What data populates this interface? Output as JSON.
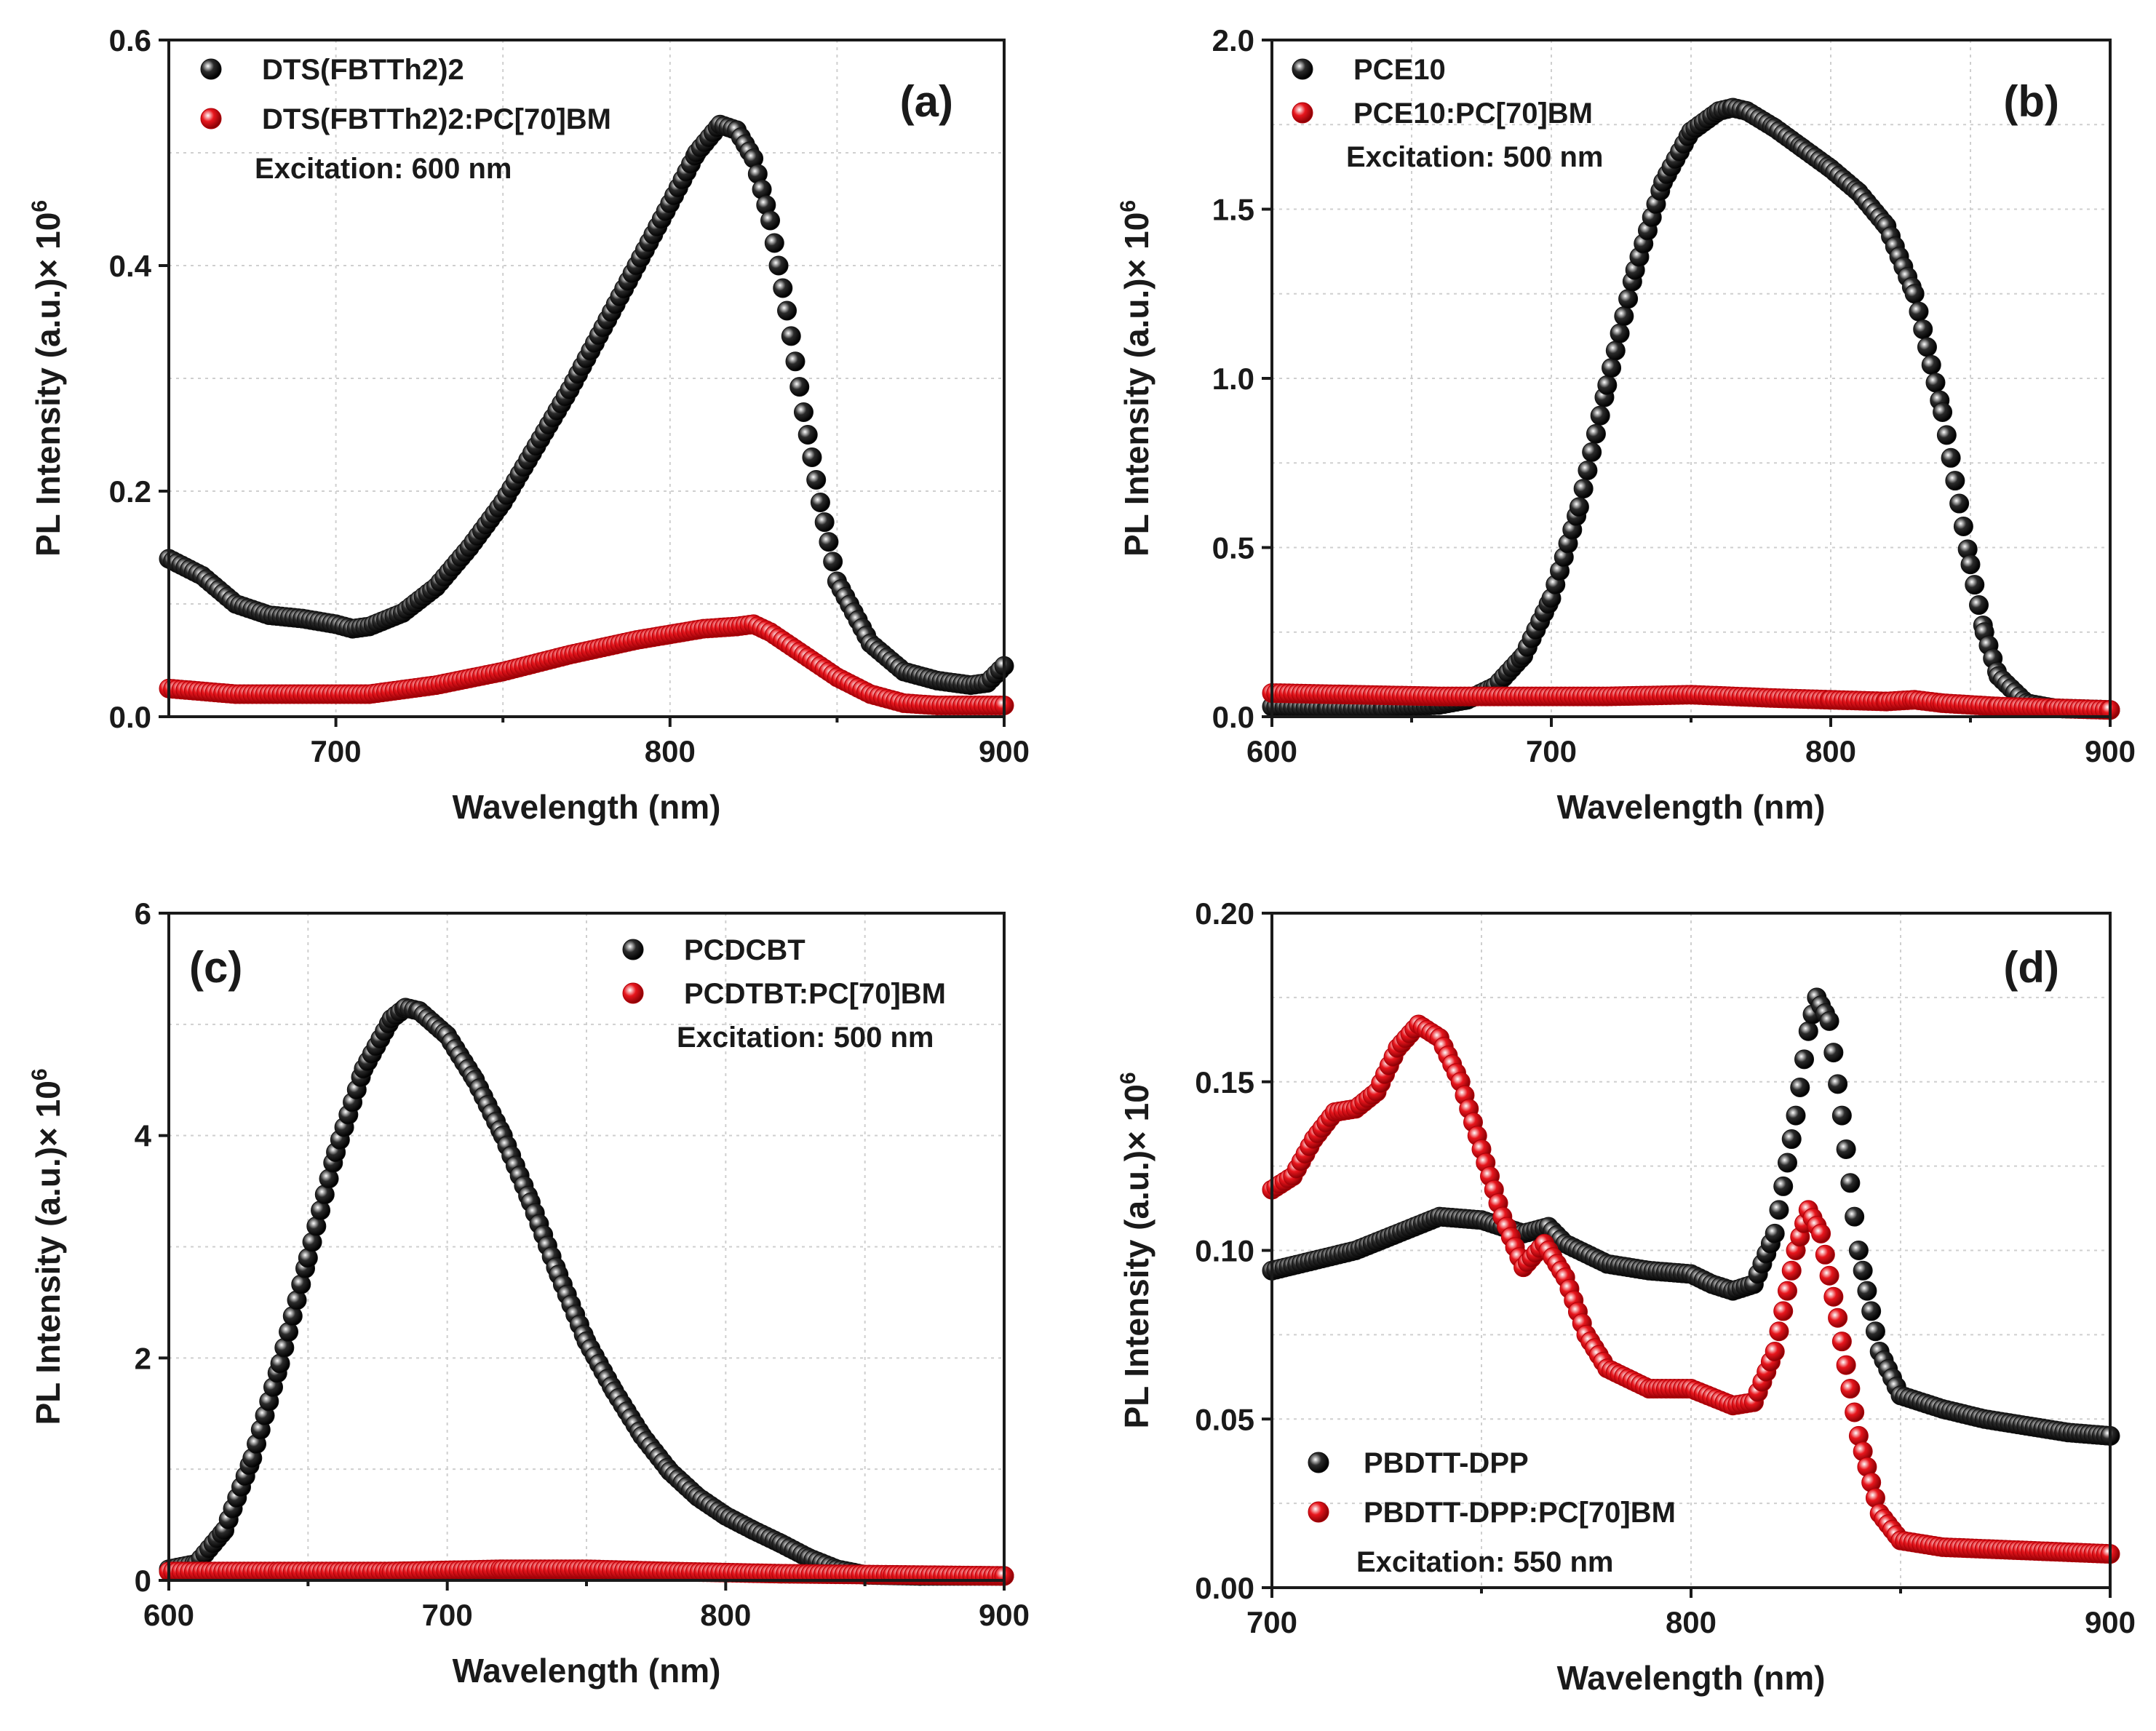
{
  "figure": {
    "description_id": "pl-spectra-quad"
  },
  "colors": {
    "black_series": "#2b2b2b",
    "red_series": "#e8161d",
    "axis": "#1a1a1a",
    "grid": "#cfcfcf"
  },
  "chart_data": [
    {
      "type": "scatter",
      "panel": "(a)",
      "xlabel": "Wavelength (nm)",
      "ylabel": "PL Intensity (a.u.)× 10",
      "ylabel_sup": "6",
      "xlim": [
        650,
        900
      ],
      "ylim": [
        0,
        0.6
      ],
      "xticks": [
        700,
        800,
        900
      ],
      "xtick_labels": [
        "700",
        "800",
        "900"
      ],
      "yticks": [
        0,
        0.2,
        0.4,
        0.6
      ],
      "ytick_labels": [
        "0.0",
        "0.2",
        "0.4",
        "0.6"
      ],
      "legend_position": "top-left",
      "annotation": "Excitation: 600 nm",
      "series": [
        {
          "name": "DTS(FBTTh2)2",
          "color": "#2b2b2b",
          "points": [
            [
              650,
              0.14
            ],
            [
              660,
              0.125
            ],
            [
              670,
              0.1
            ],
            [
              680,
              0.09
            ],
            [
              690,
              0.087
            ],
            [
              700,
              0.082
            ],
            [
              705,
              0.078
            ],
            [
              710,
              0.08
            ],
            [
              720,
              0.092
            ],
            [
              730,
              0.115
            ],
            [
              740,
              0.15
            ],
            [
              750,
              0.19
            ],
            [
              760,
              0.24
            ],
            [
              770,
              0.29
            ],
            [
              780,
              0.345
            ],
            [
              790,
              0.4
            ],
            [
              800,
              0.455
            ],
            [
              808,
              0.5
            ],
            [
              815,
              0.525
            ],
            [
              820,
              0.52
            ],
            [
              825,
              0.495
            ],
            [
              830,
              0.44
            ],
            [
              835,
              0.36
            ],
            [
              840,
              0.27
            ],
            [
              845,
              0.19
            ],
            [
              850,
              0.12
            ],
            [
              860,
              0.065
            ],
            [
              870,
              0.04
            ],
            [
              880,
              0.032
            ],
            [
              890,
              0.028
            ],
            [
              895,
              0.03
            ],
            [
              900,
              0.045
            ]
          ]
        },
        {
          "name": "DTS(FBTTh2)2:PC[70]BM",
          "color": "#e8161d",
          "points": [
            [
              650,
              0.025
            ],
            [
              670,
              0.02
            ],
            [
              690,
              0.02
            ],
            [
              710,
              0.02
            ],
            [
              730,
              0.028
            ],
            [
              750,
              0.04
            ],
            [
              770,
              0.055
            ],
            [
              790,
              0.068
            ],
            [
              810,
              0.078
            ],
            [
              820,
              0.08
            ],
            [
              825,
              0.082
            ],
            [
              830,
              0.075
            ],
            [
              840,
              0.055
            ],
            [
              850,
              0.035
            ],
            [
              860,
              0.02
            ],
            [
              870,
              0.012
            ],
            [
              880,
              0.01
            ],
            [
              900,
              0.01
            ]
          ]
        }
      ]
    },
    {
      "type": "scatter",
      "panel": "(b)",
      "xlabel": "Wavelength (nm)",
      "ylabel": "PL Intensity (a.u.)× 10",
      "ylabel_sup": "6",
      "xlim": [
        600,
        900
      ],
      "ylim": [
        0,
        2.0
      ],
      "xticks": [
        600,
        700,
        800,
        900
      ],
      "xtick_labels": [
        "600",
        "700",
        "800",
        "900"
      ],
      "yticks": [
        0,
        0.5,
        1.0,
        1.5,
        2.0
      ],
      "ytick_labels": [
        "0.0",
        "0.5",
        "1.0",
        "1.5",
        "2.0"
      ],
      "legend_position": "top-left",
      "annotation": "Excitation: 500 nm",
      "series": [
        {
          "name": "PCE10",
          "color": "#2b2b2b",
          "points": [
            [
              600,
              0.03
            ],
            [
              620,
              0.025
            ],
            [
              640,
              0.025
            ],
            [
              660,
              0.035
            ],
            [
              670,
              0.05
            ],
            [
              680,
              0.09
            ],
            [
              690,
              0.18
            ],
            [
              700,
              0.35
            ],
            [
              710,
              0.62
            ],
            [
              720,
              0.98
            ],
            [
              730,
              1.32
            ],
            [
              740,
              1.58
            ],
            [
              750,
              1.73
            ],
            [
              760,
              1.79
            ],
            [
              765,
              1.8
            ],
            [
              770,
              1.79
            ],
            [
              780,
              1.74
            ],
            [
              790,
              1.68
            ],
            [
              800,
              1.62
            ],
            [
              810,
              1.55
            ],
            [
              820,
              1.45
            ],
            [
              830,
              1.25
            ],
            [
              840,
              0.9
            ],
            [
              850,
              0.45
            ],
            [
              855,
              0.25
            ],
            [
              860,
              0.12
            ],
            [
              870,
              0.04
            ],
            [
              880,
              0.025
            ],
            [
              900,
              0.02
            ]
          ]
        },
        {
          "name": "PCE10:PC[70]BM",
          "color": "#e8161d",
          "points": [
            [
              600,
              0.07
            ],
            [
              630,
              0.065
            ],
            [
              660,
              0.06
            ],
            [
              690,
              0.06
            ],
            [
              720,
              0.06
            ],
            [
              750,
              0.065
            ],
            [
              780,
              0.055
            ],
            [
              800,
              0.05
            ],
            [
              820,
              0.045
            ],
            [
              830,
              0.05
            ],
            [
              840,
              0.04
            ],
            [
              860,
              0.03
            ],
            [
              880,
              0.025
            ],
            [
              900,
              0.02
            ]
          ]
        }
      ]
    },
    {
      "type": "scatter",
      "panel": "(c)",
      "xlabel": "Wavelength (nm)",
      "ylabel": "PL Intensity (a.u.)× 10",
      "ylabel_sup": "6",
      "xlim": [
        600,
        900
      ],
      "ylim": [
        0,
        6
      ],
      "xticks": [
        600,
        700,
        800,
        900
      ],
      "xtick_labels": [
        "600",
        "700",
        "800",
        "900"
      ],
      "yticks": [
        0,
        2,
        4,
        6
      ],
      "ytick_labels": [
        "0",
        "2",
        "4",
        "6"
      ],
      "legend_position": "top-right",
      "annotation": "Excitation: 500 nm",
      "series": [
        {
          "name": "PCDCBT",
          "color": "#2b2b2b",
          "points": [
            [
              600,
              0.1
            ],
            [
              610,
              0.15
            ],
            [
              620,
              0.45
            ],
            [
              630,
              1.1
            ],
            [
              640,
              1.95
            ],
            [
              650,
              2.9
            ],
            [
              660,
              3.85
            ],
            [
              670,
              4.6
            ],
            [
              680,
              5.05
            ],
            [
              685,
              5.15
            ],
            [
              690,
              5.12
            ],
            [
              700,
              4.9
            ],
            [
              710,
              4.5
            ],
            [
              720,
              4.0
            ],
            [
              730,
              3.4
            ],
            [
              740,
              2.75
            ],
            [
              750,
              2.15
            ],
            [
              760,
              1.7
            ],
            [
              770,
              1.3
            ],
            [
              780,
              0.98
            ],
            [
              790,
              0.75
            ],
            [
              800,
              0.58
            ],
            [
              810,
              0.45
            ],
            [
              820,
              0.33
            ],
            [
              830,
              0.2
            ],
            [
              840,
              0.1
            ],
            [
              850,
              0.05
            ],
            [
              870,
              0.04
            ],
            [
              900,
              0.04
            ]
          ]
        },
        {
          "name": "PCDTBT:PC[70]BM",
          "color": "#e8161d",
          "points": [
            [
              600,
              0.08
            ],
            [
              640,
              0.08
            ],
            [
              680,
              0.08
            ],
            [
              720,
              0.1
            ],
            [
              750,
              0.1
            ],
            [
              780,
              0.08
            ],
            [
              820,
              0.06
            ],
            [
              860,
              0.05
            ],
            [
              900,
              0.04
            ]
          ]
        }
      ]
    },
    {
      "type": "scatter",
      "panel": "(d)",
      "xlabel": "Wavelength (nm)",
      "ylabel": "PL Intensity (a.u.)× 10",
      "ylabel_sup": "6",
      "xlim": [
        700,
        900
      ],
      "ylim": [
        0,
        0.2
      ],
      "xticks": [
        700,
        800,
        900
      ],
      "xtick_labels": [
        "700",
        "800",
        "900"
      ],
      "yticks": [
        0,
        0.05,
        0.1,
        0.15,
        0.2
      ],
      "ytick_labels": [
        "0.00",
        "0.05",
        "0.10",
        "0.15",
        "0.20"
      ],
      "legend_position": "bottom-left",
      "annotation": "Excitation: 550 nm",
      "series": [
        {
          "name": "PBDTT-DPP",
          "color": "#2b2b2b",
          "points": [
            [
              700,
              0.094
            ],
            [
              710,
              0.097
            ],
            [
              720,
              0.1
            ],
            [
              730,
              0.105
            ],
            [
              740,
              0.11
            ],
            [
              750,
              0.109
            ],
            [
              760,
              0.105
            ],
            [
              766,
              0.107
            ],
            [
              770,
              0.102
            ],
            [
              780,
              0.096
            ],
            [
              790,
              0.094
            ],
            [
              800,
              0.093
            ],
            [
              805,
              0.09
            ],
            [
              810,
              0.088
            ],
            [
              815,
              0.09
            ],
            [
              820,
              0.105
            ],
            [
              825,
              0.14
            ],
            [
              828,
              0.165
            ],
            [
              830,
              0.175
            ],
            [
              833,
              0.168
            ],
            [
              836,
              0.14
            ],
            [
              840,
              0.1
            ],
            [
              845,
              0.07
            ],
            [
              850,
              0.057
            ],
            [
              860,
              0.053
            ],
            [
              870,
              0.05
            ],
            [
              880,
              0.048
            ],
            [
              890,
              0.046
            ],
            [
              900,
              0.045
            ]
          ]
        },
        {
          "name": "PBDTT-DPP:PC[70]BM",
          "color": "#e8161d",
          "points": [
            [
              700,
              0.118
            ],
            [
              705,
              0.122
            ],
            [
              710,
              0.133
            ],
            [
              715,
              0.141
            ],
            [
              720,
              0.142
            ],
            [
              725,
              0.147
            ],
            [
              730,
              0.16
            ],
            [
              735,
              0.167
            ],
            [
              740,
              0.163
            ],
            [
              745,
              0.15
            ],
            [
              750,
              0.13
            ],
            [
              755,
              0.11
            ],
            [
              760,
              0.095
            ],
            [
              765,
              0.102
            ],
            [
              770,
              0.092
            ],
            [
              775,
              0.075
            ],
            [
              780,
              0.065
            ],
            [
              790,
              0.059
            ],
            [
              800,
              0.059
            ],
            [
              810,
              0.054
            ],
            [
              815,
              0.055
            ],
            [
              820,
              0.07
            ],
            [
              825,
              0.1
            ],
            [
              828,
              0.112
            ],
            [
              831,
              0.105
            ],
            [
              835,
              0.08
            ],
            [
              840,
              0.045
            ],
            [
              845,
              0.022
            ],
            [
              850,
              0.014
            ],
            [
              860,
              0.012
            ],
            [
              880,
              0.011
            ],
            [
              900,
              0.01
            ]
          ]
        }
      ]
    }
  ]
}
